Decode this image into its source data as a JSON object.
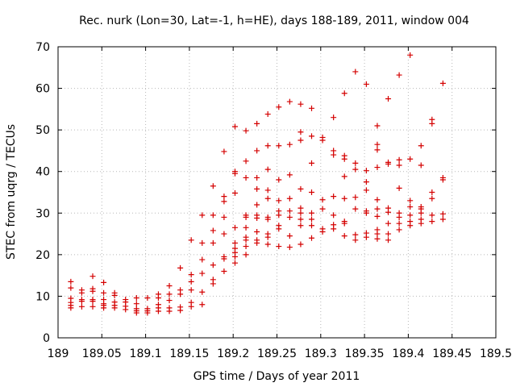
{
  "chart_data": {
    "type": "scatter",
    "title": "Rec. nurk (Lon=30, Lat=-1, h=HE), days 188-189, 2011, window 004",
    "xlabel": "GPS time / Days of year 2011",
    "ylabel": "STEC from uqrg / TECUs",
    "xlim": [
      189,
      189.5
    ],
    "ylim": [
      0,
      70
    ],
    "x_ticks": [
      "189",
      "189.05",
      "189.1",
      "189.15",
      "189.2",
      "189.25",
      "189.3",
      "189.35",
      "189.4",
      "189.45",
      "189.5"
    ],
    "y_ticks": [
      "0",
      "10",
      "20",
      "30",
      "40",
      "50",
      "60",
      "70"
    ],
    "grid": true,
    "legend": "none",
    "marker": "plus",
    "color": "#d40000",
    "series": [
      {
        "points": [
          [
            189.0146,
            13.5
          ],
          [
            189.0146,
            12.0
          ],
          [
            189.0146,
            9.5
          ],
          [
            189.0146,
            8.5
          ],
          [
            189.0146,
            7.8
          ],
          [
            189.0146,
            7.2
          ],
          [
            189.0271,
            11.5
          ],
          [
            189.0271,
            10.8
          ],
          [
            189.0271,
            9.2
          ],
          [
            189.0271,
            8.8
          ],
          [
            189.0271,
            7.5
          ],
          [
            189.0396,
            14.8
          ],
          [
            189.0396,
            11.8
          ],
          [
            189.0396,
            11.2
          ],
          [
            189.0396,
            9.2
          ],
          [
            189.0396,
            8.8
          ],
          [
            189.0396,
            7.5
          ],
          [
            189.0521,
            13.3
          ],
          [
            189.0521,
            10.8
          ],
          [
            189.0521,
            9.2
          ],
          [
            189.0521,
            8.2
          ],
          [
            189.0521,
            7.8
          ],
          [
            189.0521,
            7.2
          ],
          [
            189.0646,
            10.8
          ],
          [
            189.0646,
            10.2
          ],
          [
            189.0646,
            8.6
          ],
          [
            189.0646,
            7.8
          ],
          [
            189.0646,
            7.2
          ],
          [
            189.0771,
            9.2
          ],
          [
            189.0771,
            8.6
          ],
          [
            189.0771,
            7.6
          ],
          [
            189.0771,
            6.8
          ],
          [
            189.0896,
            9.6
          ],
          [
            189.0896,
            8.2
          ],
          [
            189.0896,
            7.0
          ],
          [
            189.0896,
            6.5
          ],
          [
            189.0896,
            6.0
          ],
          [
            189.1021,
            9.6
          ],
          [
            189.1021,
            7.0
          ],
          [
            189.1021,
            6.5
          ],
          [
            189.1021,
            6.0
          ],
          [
            189.1146,
            10.5
          ],
          [
            189.1146,
            9.6
          ],
          [
            189.1146,
            8.0
          ],
          [
            189.1146,
            7.2
          ],
          [
            189.1146,
            6.4
          ],
          [
            189.1271,
            12.5
          ],
          [
            189.1271,
            10.5
          ],
          [
            189.1271,
            9.0
          ],
          [
            189.1271,
            7.2
          ],
          [
            189.1271,
            6.4
          ],
          [
            189.1396,
            16.8
          ],
          [
            189.1396,
            11.5
          ],
          [
            189.1396,
            10.5
          ],
          [
            189.1396,
            7.4
          ],
          [
            189.1396,
            6.6
          ],
          [
            189.1521,
            23.5
          ],
          [
            189.1521,
            15.2
          ],
          [
            189.1521,
            13.5
          ],
          [
            189.1521,
            11.5
          ],
          [
            189.1521,
            8.5
          ],
          [
            189.1521,
            7.5
          ],
          [
            189.1646,
            29.5
          ],
          [
            189.1646,
            22.8
          ],
          [
            189.1646,
            18.8
          ],
          [
            189.1646,
            15.5
          ],
          [
            189.1646,
            11.0
          ],
          [
            189.1646,
            8.0
          ],
          [
            189.1771,
            36.5
          ],
          [
            189.1771,
            29.5
          ],
          [
            189.1771,
            25.8
          ],
          [
            189.1771,
            22.8
          ],
          [
            189.1771,
            17.5
          ],
          [
            189.1771,
            14.0
          ],
          [
            189.1771,
            13.0
          ],
          [
            189.1896,
            44.8
          ],
          [
            189.1896,
            34.0
          ],
          [
            189.1896,
            32.8
          ],
          [
            189.1896,
            29.0
          ],
          [
            189.1896,
            25.0
          ],
          [
            189.1896,
            19.5
          ],
          [
            189.1896,
            19.0
          ],
          [
            189.1896,
            16.0
          ],
          [
            189.2021,
            50.8
          ],
          [
            189.2021,
            40.0
          ],
          [
            189.2021,
            39.5
          ],
          [
            189.2021,
            34.8
          ],
          [
            189.2021,
            26.5
          ],
          [
            189.2021,
            22.8
          ],
          [
            189.2021,
            21.5
          ],
          [
            189.2021,
            20.5
          ],
          [
            189.2021,
            19.5
          ],
          [
            189.2021,
            18.0
          ],
          [
            189.2146,
            49.8
          ],
          [
            189.2146,
            42.5
          ],
          [
            189.2146,
            38.5
          ],
          [
            189.2146,
            29.5
          ],
          [
            189.2146,
            29.0
          ],
          [
            189.2146,
            26.5
          ],
          [
            189.2146,
            24.2
          ],
          [
            189.2146,
            23.5
          ],
          [
            189.2146,
            22.0
          ],
          [
            189.2146,
            20.0
          ],
          [
            189.2271,
            51.5
          ],
          [
            189.2271,
            45.0
          ],
          [
            189.2271,
            38.5
          ],
          [
            189.2271,
            35.8
          ],
          [
            189.2271,
            32.0
          ],
          [
            189.2271,
            29.5
          ],
          [
            189.2271,
            28.8
          ],
          [
            189.2271,
            25.5
          ],
          [
            189.2271,
            23.5
          ],
          [
            189.2271,
            22.8
          ],
          [
            189.2396,
            53.8
          ],
          [
            189.2396,
            46.2
          ],
          [
            189.2396,
            40.5
          ],
          [
            189.2396,
            35.5
          ],
          [
            189.2396,
            33.5
          ],
          [
            189.2396,
            29.0
          ],
          [
            189.2396,
            28.5
          ],
          [
            189.2396,
            25.0
          ],
          [
            189.2396,
            24.2
          ],
          [
            189.2396,
            22.5
          ],
          [
            189.2521,
            55.5
          ],
          [
            189.2521,
            46.2
          ],
          [
            189.2521,
            38.0
          ],
          [
            189.2521,
            33.0
          ],
          [
            189.2521,
            30.5
          ],
          [
            189.2521,
            29.5
          ],
          [
            189.2521,
            27.0
          ],
          [
            189.2521,
            26.2
          ],
          [
            189.2521,
            22.0
          ],
          [
            189.2646,
            56.8
          ],
          [
            189.2646,
            46.5
          ],
          [
            189.2646,
            39.2
          ],
          [
            189.2646,
            33.5
          ],
          [
            189.2646,
            30.5
          ],
          [
            189.2646,
            29.0
          ],
          [
            189.2646,
            24.5
          ],
          [
            189.2646,
            21.8
          ],
          [
            189.2771,
            56.2
          ],
          [
            189.2771,
            49.5
          ],
          [
            189.2771,
            47.5
          ],
          [
            189.2771,
            35.8
          ],
          [
            189.2771,
            31.2
          ],
          [
            189.2771,
            30.0
          ],
          [
            189.2771,
            28.5
          ],
          [
            189.2771,
            27.0
          ],
          [
            189.2771,
            22.5
          ],
          [
            189.2896,
            55.2
          ],
          [
            189.2896,
            48.5
          ],
          [
            189.2896,
            42.0
          ],
          [
            189.2896,
            35.0
          ],
          [
            189.2896,
            30.0
          ],
          [
            189.2896,
            28.5
          ],
          [
            189.2896,
            27.0
          ],
          [
            189.2896,
            24.0
          ],
          [
            189.3021,
            48.2
          ],
          [
            189.3021,
            47.5
          ],
          [
            189.3021,
            33.2
          ],
          [
            189.3021,
            31.0
          ],
          [
            189.3021,
            26.2
          ],
          [
            189.3021,
            25.5
          ],
          [
            189.3146,
            53.0
          ],
          [
            189.3146,
            45.0
          ],
          [
            189.3146,
            44.0
          ],
          [
            189.3146,
            34.0
          ],
          [
            189.3146,
            29.5
          ],
          [
            189.3146,
            27.2
          ],
          [
            189.3146,
            26.2
          ],
          [
            189.3271,
            58.8
          ],
          [
            189.3271,
            43.8
          ],
          [
            189.3271,
            43.0
          ],
          [
            189.3271,
            38.8
          ],
          [
            189.3271,
            33.5
          ],
          [
            189.3271,
            28.0
          ],
          [
            189.3271,
            27.5
          ],
          [
            189.3271,
            24.5
          ],
          [
            189.3396,
            64.0
          ],
          [
            189.3396,
            42.0
          ],
          [
            189.3396,
            40.5
          ],
          [
            189.3396,
            33.8
          ],
          [
            189.3396,
            31.0
          ],
          [
            189.3396,
            24.8
          ],
          [
            189.3396,
            23.5
          ],
          [
            189.3521,
            61.0
          ],
          [
            189.3521,
            40.2
          ],
          [
            189.3521,
            37.5
          ],
          [
            189.3521,
            35.5
          ],
          [
            189.3521,
            30.5
          ],
          [
            189.3521,
            30.0
          ],
          [
            189.3521,
            25.2
          ],
          [
            189.3521,
            24.2
          ],
          [
            189.3646,
            51.0
          ],
          [
            189.3646,
            46.5
          ],
          [
            189.3646,
            45.2
          ],
          [
            189.3646,
            41.0
          ],
          [
            189.3646,
            33.2
          ],
          [
            189.3646,
            31.0
          ],
          [
            189.3646,
            29.2
          ],
          [
            189.3646,
            26.0
          ],
          [
            189.3646,
            25.0
          ],
          [
            189.3646,
            23.8
          ],
          [
            189.3771,
            57.5
          ],
          [
            189.3771,
            42.2
          ],
          [
            189.3771,
            41.8
          ],
          [
            189.3771,
            31.2
          ],
          [
            189.3771,
            30.2
          ],
          [
            189.3771,
            27.5
          ],
          [
            189.3771,
            25.0
          ],
          [
            189.3771,
            23.5
          ],
          [
            189.3896,
            63.2
          ],
          [
            189.3896,
            42.8
          ],
          [
            189.3896,
            41.5
          ],
          [
            189.3896,
            36.0
          ],
          [
            189.3896,
            30.0
          ],
          [
            189.3896,
            29.0
          ],
          [
            189.3896,
            27.5
          ],
          [
            189.3896,
            26.0
          ],
          [
            189.4021,
            68.0
          ],
          [
            189.4021,
            43.0
          ],
          [
            189.4021,
            33.0
          ],
          [
            189.4021,
            31.5
          ],
          [
            189.4021,
            29.5
          ],
          [
            189.4021,
            28.0
          ],
          [
            189.4021,
            27.0
          ],
          [
            189.4146,
            46.2
          ],
          [
            189.4146,
            41.5
          ],
          [
            189.4146,
            31.5
          ],
          [
            189.4146,
            31.0
          ],
          [
            189.4146,
            30.0
          ],
          [
            189.4146,
            28.5
          ],
          [
            189.4146,
            27.5
          ],
          [
            189.4271,
            52.5
          ],
          [
            189.4271,
            51.5
          ],
          [
            189.4271,
            35.0
          ],
          [
            189.4271,
            33.5
          ],
          [
            189.4271,
            29.5
          ],
          [
            189.4271,
            28.0
          ],
          [
            189.4396,
            61.2
          ],
          [
            189.4396,
            38.5
          ],
          [
            189.4396,
            38.0
          ],
          [
            189.4396,
            29.8
          ],
          [
            189.4396,
            28.5
          ]
        ]
      }
    ]
  }
}
